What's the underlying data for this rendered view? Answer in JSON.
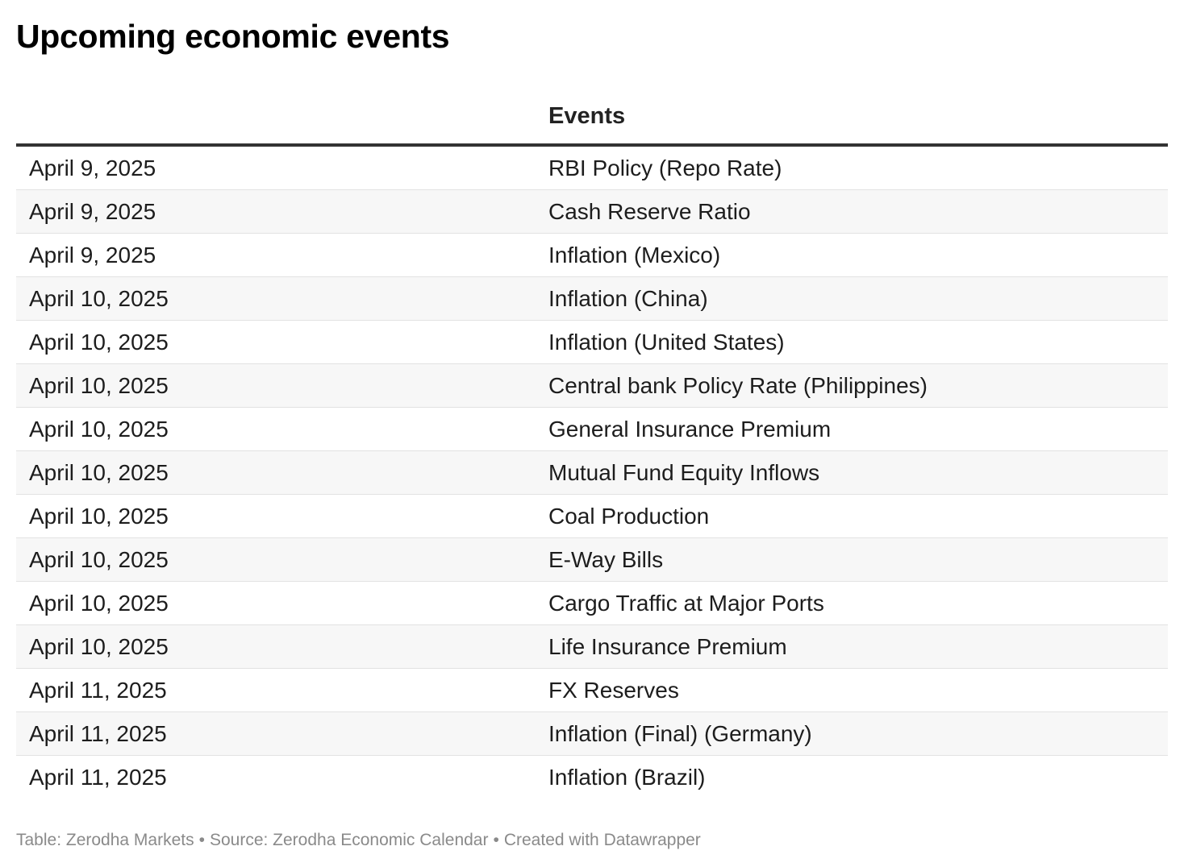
{
  "title": "Upcoming economic events",
  "table": {
    "headers": {
      "date": "",
      "events": "Events"
    }
  },
  "chart_data": {
    "type": "table",
    "title": "Upcoming economic events",
    "columns": [
      "",
      "Events"
    ],
    "rows": [
      [
        "April 9, 2025",
        "RBI Policy (Repo Rate)"
      ],
      [
        "April 9, 2025",
        "Cash Reserve Ratio"
      ],
      [
        "April 9, 2025",
        "Inflation (Mexico)"
      ],
      [
        "April 10, 2025",
        "Inflation (China)"
      ],
      [
        "April 10, 2025",
        "Inflation (United States)"
      ],
      [
        "April 10, 2025",
        "Central bank Policy Rate (Philippines)"
      ],
      [
        "April 10, 2025",
        "General Insurance Premium"
      ],
      [
        "April 10, 2025",
        "Mutual Fund Equity Inflows"
      ],
      [
        "April 10, 2025",
        "Coal Production"
      ],
      [
        "April 10, 2025",
        "E-Way Bills"
      ],
      [
        "April 10, 2025",
        "Cargo Traffic at Major Ports"
      ],
      [
        "April 10, 2025",
        "Life Insurance Premium"
      ],
      [
        "April 11, 2025",
        "FX Reserves"
      ],
      [
        "April 11, 2025",
        "Inflation (Final) (Germany)"
      ],
      [
        "April 11, 2025",
        "Inflation (Brazil)"
      ]
    ]
  },
  "footer": {
    "credit": "Table: Zerodha Markets",
    "source": "Source: Zerodha Economic Calendar",
    "tool": "Created with Datawrapper",
    "separator": "•"
  }
}
